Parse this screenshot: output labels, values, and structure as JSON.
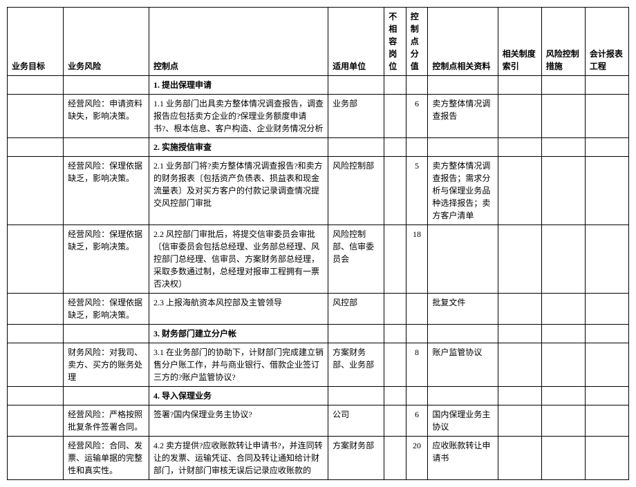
{
  "headers": {
    "goal": "业务目标",
    "risk": "业务风险",
    "control": "控制点",
    "unit": "适用单位",
    "incompat": "不相容岗位",
    "score": "控制点分值",
    "material": "控制点相关资料",
    "system": "相关制度索引",
    "measure": "风险控制措施",
    "report": "会计报表工程"
  },
  "rows": [
    {
      "type": "section",
      "control": "1. 提出保理申请"
    },
    {
      "type": "data",
      "risk": "经营风险：申请资料缺失，影响决策。",
      "control": "1.1 业务部门出具卖方整体情况调查报告，调查报告应包括卖方企业的?保理业务额度申请书?、根本信息、客户构造、企业财务情况分析",
      "unit": "业务部",
      "score": "6",
      "material": "卖方整体情况调查报告"
    },
    {
      "type": "section",
      "control": "2. 实施授信审查"
    },
    {
      "type": "data",
      "risk": "经营风险：保理依据缺乏，影响决策。",
      "control": "2.1 业务部门将?卖方整体情况调查报告?和卖方的财务报表〔包括资产负债表、损益表和现金流量表〕及对买方客户的付款记录调查情况提交风控部门审批",
      "unit": "风险控制部",
      "score": "5",
      "material": "卖方整体情况调查报告；需求分析与保理业务品种选择报告；卖方客户清单"
    },
    {
      "type": "data",
      "risk": "经营风险：保理依据缺乏，影响决策。",
      "control": "2.2 风控部门审批后，将提交信审委员会审批〔信审委员会包括总经理、业务部总经理、风控部门总经理、信审员、方案财务部总经理，采取多数通过制，总经理对报审工程拥有一票否决权〕",
      "unit": "风险控制部、信审委员会",
      "score": "18",
      "material": ""
    },
    {
      "type": "data",
      "risk": "经营风险：保理依据缺乏，影响决策。",
      "control": "2.3 上报海航资本风控部及主管领导",
      "unit": "风控部",
      "score": "",
      "material": "批复文件"
    },
    {
      "type": "section",
      "control": "3. 财务部门建立分户帐"
    },
    {
      "type": "data",
      "risk": "财务风险：对我司、卖方、买方的账务处理",
      "control": "3.1 在业务部门的协助下，计财部门完成建立销售分户账工作，并与商业银行、借款企业签订三方的?账户监管协议?",
      "unit": "方案财务部、业务部",
      "score": "8",
      "material": "账户监管协议"
    },
    {
      "type": "section",
      "control": "4. 导入保理业务"
    },
    {
      "type": "data",
      "risk": "经营风险：严格按照批复条件签署合同。",
      "control": "签署?国内保理业务主协议?",
      "unit": "公司",
      "score": "6",
      "material": "国内保理业务主协议"
    },
    {
      "type": "data",
      "risk": "经营风险：合同、发票、运输单据的完整性和真实性。",
      "control": "4.2 卖方提供?应收账款转让申请书?，并连同转让的发票、运输凭证、合同及转让通知给计财部门，计财部门审核无误后记录应收账款的",
      "unit": "方案财务部",
      "score": "20",
      "material": "应收账款转让申请书"
    }
  ]
}
